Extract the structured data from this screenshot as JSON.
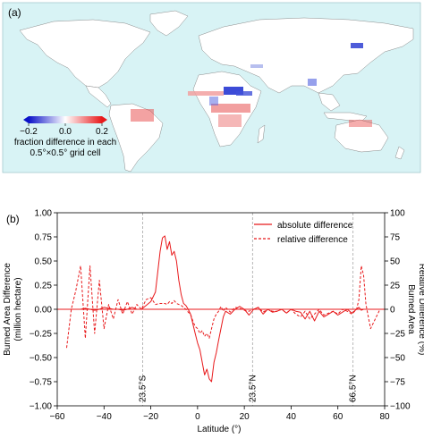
{
  "panel_a": {
    "label": "(a)",
    "colorbar": {
      "ticks": [
        "−0.2",
        "0.0",
        "0.2"
      ],
      "label_line1": "fraction difference in each",
      "label_line2": "0.5°×0.5° grid cell",
      "colors": {
        "negative": "#0b12c8",
        "zero": "#ffffff",
        "positive": "#e8191b"
      }
    },
    "colors": {
      "ocean": "#d8f3f5",
      "land": "#ffffff",
      "coast": "#8a8a8a"
    }
  },
  "panel_b": {
    "label": "(b)"
  },
  "chart_data": {
    "type": "line",
    "x": [
      -56,
      -54,
      -52,
      -50,
      -48,
      -46,
      -44,
      -42,
      -40,
      -38,
      -36,
      -34,
      -32,
      -30,
      -28,
      -26,
      -24,
      -22,
      -20,
      -18,
      -16,
      -15,
      -14,
      -13,
      -12,
      -11,
      -10,
      -9,
      -8,
      -7,
      -6,
      -5,
      -4,
      -3,
      -2,
      -1,
      0,
      1,
      2,
      3,
      4,
      5,
      6,
      7,
      8,
      9,
      10,
      11,
      12,
      14,
      16,
      18,
      20,
      22,
      24,
      26,
      28,
      30,
      32,
      34,
      36,
      38,
      40,
      42,
      44,
      46,
      48,
      50,
      52,
      54,
      56,
      58,
      60,
      62,
      64,
      66,
      68,
      69,
      70,
      71,
      72,
      74,
      78
    ],
    "series": [
      {
        "name": "absolute difference",
        "style": "solid",
        "axis": "left",
        "color": "#e8191b",
        "values": [
          0.0,
          0.0,
          0.0,
          0.0,
          0.01,
          0.0,
          -0.01,
          0.0,
          0.02,
          0.01,
          0.0,
          0.0,
          -0.01,
          0.0,
          0.02,
          0.0,
          0.0,
          0.04,
          0.08,
          0.18,
          0.6,
          0.74,
          0.76,
          0.62,
          0.7,
          0.56,
          0.6,
          0.5,
          0.3,
          0.15,
          0.06,
          0.04,
          0.0,
          -0.05,
          -0.15,
          -0.25,
          -0.35,
          -0.42,
          -0.55,
          -0.68,
          -0.62,
          -0.72,
          -0.75,
          -0.55,
          -0.45,
          -0.32,
          -0.2,
          -0.08,
          -0.02,
          -0.05,
          0.0,
          0.03,
          0.0,
          -0.06,
          0.0,
          0.02,
          -0.05,
          0.0,
          -0.03,
          -0.02,
          0.0,
          -0.04,
          0.0,
          -0.02,
          -0.03,
          -0.1,
          -0.02,
          -0.12,
          -0.02,
          -0.08,
          -0.05,
          -0.02,
          -0.06,
          -0.03,
          0.0,
          -0.04,
          0.0,
          0.02,
          -0.01,
          0.0,
          0.0,
          0.0,
          0.0
        ]
      },
      {
        "name": "relative difference",
        "style": "dashed",
        "axis": "right",
        "color": "#e8191b",
        "values": [
          -40,
          0,
          20,
          45,
          -30,
          45,
          -25,
          30,
          -20,
          5,
          -10,
          10,
          -5,
          8,
          -5,
          5,
          0,
          10,
          12,
          5,
          6,
          6,
          6,
          5,
          8,
          6,
          9,
          6,
          5,
          4,
          2,
          0,
          -3,
          -5,
          -12,
          -18,
          -20,
          -25,
          -22,
          -28,
          -25,
          -30,
          -20,
          -10,
          -5,
          -2,
          3,
          -2,
          2,
          -3,
          2,
          1,
          -1,
          -2,
          0,
          2,
          -3,
          0,
          -2,
          -2,
          0,
          -4,
          0,
          -5,
          -8,
          -2,
          -10,
          -5,
          0,
          -6,
          -4,
          -2,
          -5,
          0,
          -2,
          -5,
          0,
          10,
          45,
          35,
          5,
          -20,
          0
        ]
      }
    ],
    "xlabel": "Latitude (°)",
    "ylabel_left_line1": "Burned Area Difference",
    "ylabel_left_line2": "(million hectare)",
    "ylabel_right_line1": "Burned Area",
    "ylabel_right_line2": "Relative Difference (%)",
    "xlim": [
      -60,
      80
    ],
    "ylim_left": [
      -1.0,
      1.0
    ],
    "ylim_right": [
      -100,
      100
    ],
    "xticks": [
      "−60",
      "−40",
      "−20",
      "0",
      "20",
      "40",
      "60",
      "80"
    ],
    "yticks_left": [
      "−1.00",
      "−0.75",
      "−0.50",
      "−0.25",
      "0.00",
      "0.25",
      "0.50",
      "0.75",
      "1.00"
    ],
    "yticks_right": [
      "−100",
      "−75",
      "−50",
      "−25",
      "0",
      "25",
      "50",
      "75",
      "100"
    ],
    "reference_lines": [
      {
        "x": -23.5,
        "label": "23.5°S"
      },
      {
        "x": 23.5,
        "label": "23.5°N"
      },
      {
        "x": 66.5,
        "label": "66.5°N"
      }
    ],
    "legend_position": "top-right",
    "grid": false
  }
}
